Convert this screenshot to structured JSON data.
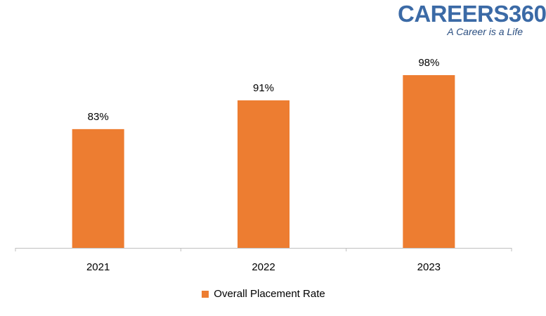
{
  "logo": {
    "name": "CAREERS360",
    "tagline": "A Career is a Life"
  },
  "colors": {
    "bar": "#ED7D31",
    "axis": "#BFBFBF",
    "text": "#000000",
    "logo_blue": "#3B6AA6"
  },
  "legend": {
    "label": "Overall Placement Rate",
    "position": "bottom"
  },
  "chart_data": {
    "type": "bar",
    "categories": [
      "2021",
      "2022",
      "2023"
    ],
    "series": [
      {
        "name": "Overall Placement Rate",
        "values": [
          83,
          91,
          98
        ],
        "labels": [
          "83%",
          "91%",
          "98%"
        ]
      }
    ],
    "ylim": [
      50,
      100
    ],
    "grid": false,
    "title": "",
    "xlabel": "",
    "ylabel": ""
  }
}
